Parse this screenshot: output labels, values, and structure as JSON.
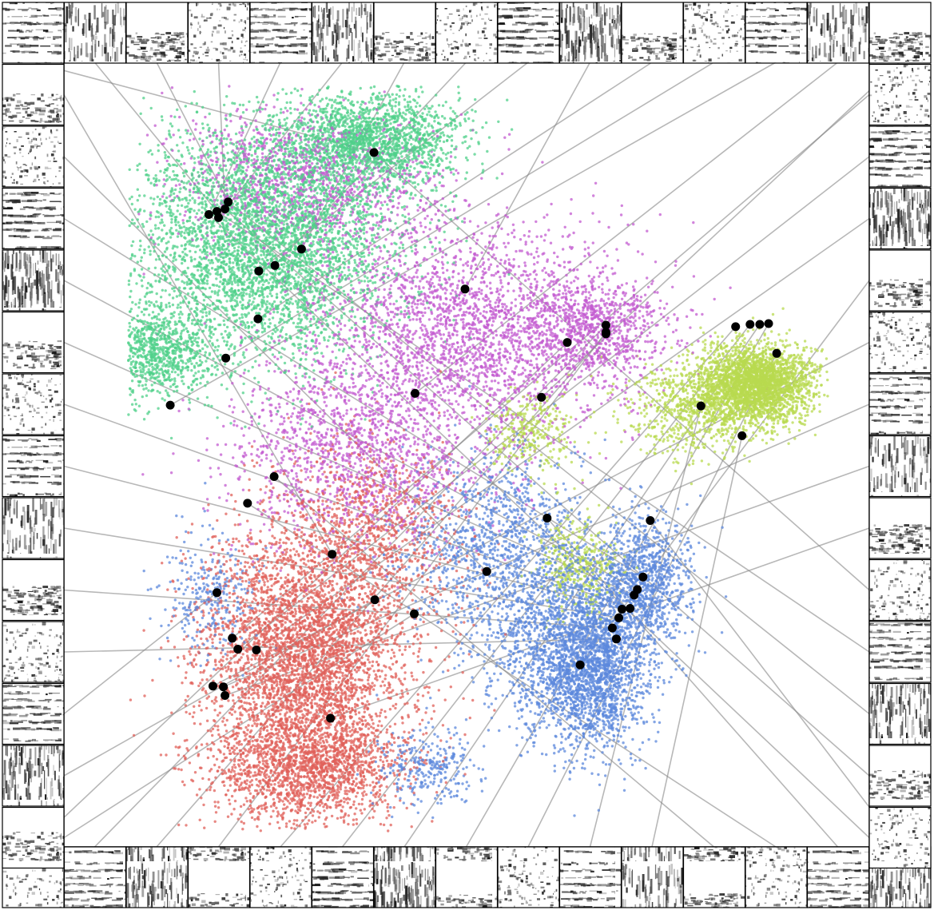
{
  "chart_data": {
    "type": "scatter",
    "title": "",
    "xlabel": "",
    "ylabel": "",
    "axes_visible": false,
    "grid": false,
    "legend": "none",
    "xlim": [
      0,
      100
    ],
    "ylim": [
      0,
      100
    ],
    "background": "#ffffff",
    "thumbnail_style": "grayscale spectrogram insets framing the plot, connected to highlighted points by gray lines",
    "thumbnail_count_per_side": 14,
    "series": [
      {
        "color": "#4fd08a",
        "regions": [
          {
            "cx": 25,
            "cy": 77,
            "rx": 16,
            "ry": 15,
            "n": 4200
          },
          {
            "cx": 38,
            "cy": 90,
            "rx": 11,
            "ry": 6,
            "n": 1800
          },
          {
            "cx": 12,
            "cy": 63,
            "rx": 6,
            "ry": 6,
            "n": 800
          }
        ]
      },
      {
        "color": "#c35bd0",
        "regions": [
          {
            "cx": 30,
            "cy": 85,
            "rx": 16,
            "ry": 9,
            "n": 1200
          },
          {
            "cx": 50,
            "cy": 66,
            "rx": 20,
            "ry": 14,
            "n": 2600
          },
          {
            "cx": 66,
            "cy": 66,
            "rx": 9,
            "ry": 7,
            "n": 800
          },
          {
            "cx": 36,
            "cy": 50,
            "rx": 16,
            "ry": 12,
            "n": 1400
          }
        ]
      },
      {
        "color": "#e0605a",
        "regions": [
          {
            "cx": 30,
            "cy": 24,
            "rx": 13,
            "ry": 16,
            "n": 4000
          },
          {
            "cx": 30,
            "cy": 10,
            "rx": 12,
            "ry": 7,
            "n": 1600
          },
          {
            "cx": 38,
            "cy": 40,
            "rx": 12,
            "ry": 12,
            "n": 1000
          }
        ]
      },
      {
        "color": "#5c88dc",
        "regions": [
          {
            "cx": 63,
            "cy": 25,
            "rx": 10,
            "ry": 11,
            "n": 1800
          },
          {
            "cx": 66,
            "cy": 22,
            "rx": 6,
            "ry": 10,
            "n": 1200
          },
          {
            "cx": 72,
            "cy": 34,
            "rx": 6,
            "ry": 8,
            "n": 1000
          },
          {
            "cx": 54,
            "cy": 38,
            "rx": 12,
            "ry": 12,
            "n": 1200
          },
          {
            "cx": 18,
            "cy": 32,
            "rx": 6,
            "ry": 8,
            "n": 300
          },
          {
            "cx": 45,
            "cy": 10,
            "rx": 6,
            "ry": 5,
            "n": 300
          }
        ]
      },
      {
        "color": "#b8d94f",
        "regions": [
          {
            "cx": 86,
            "cy": 59,
            "rx": 7,
            "ry": 5,
            "n": 2800
          },
          {
            "cx": 78,
            "cy": 56,
            "rx": 8,
            "ry": 6,
            "n": 700
          },
          {
            "cx": 64,
            "cy": 36,
            "rx": 5,
            "ry": 6,
            "n": 350
          },
          {
            "cx": 58,
            "cy": 53,
            "rx": 6,
            "ry": 5,
            "n": 300
          }
        ]
      }
    ],
    "highlighted_points": [
      {
        "x": 38.5,
        "y": 88.5
      },
      {
        "x": 19.0,
        "y": 81.0
      },
      {
        "x": 20.4,
        "y": 82.2
      },
      {
        "x": 20.0,
        "y": 81.3
      },
      {
        "x": 18.0,
        "y": 80.6
      },
      {
        "x": 19.2,
        "y": 80.2
      },
      {
        "x": 29.5,
        "y": 76.2
      },
      {
        "x": 26.2,
        "y": 74.1
      },
      {
        "x": 24.2,
        "y": 73.4
      },
      {
        "x": 49.8,
        "y": 71.1
      },
      {
        "x": 24.1,
        "y": 67.3
      },
      {
        "x": 20.1,
        "y": 62.3
      },
      {
        "x": 13.2,
        "y": 56.3
      },
      {
        "x": 43.6,
        "y": 57.8
      },
      {
        "x": 59.3,
        "y": 57.3
      },
      {
        "x": 62.5,
        "y": 64.3
      },
      {
        "x": 67.3,
        "y": 66.5
      },
      {
        "x": 67.3,
        "y": 65.4
      },
      {
        "x": 67.3,
        "y": 65.6
      },
      {
        "x": 83.4,
        "y": 66.3
      },
      {
        "x": 85.2,
        "y": 66.6
      },
      {
        "x": 86.4,
        "y": 66.6
      },
      {
        "x": 87.5,
        "y": 66.7
      },
      {
        "x": 88.5,
        "y": 62.9
      },
      {
        "x": 79.1,
        "y": 56.2
      },
      {
        "x": 84.2,
        "y": 52.4
      },
      {
        "x": 26.1,
        "y": 47.2
      },
      {
        "x": 22.8,
        "y": 43.8
      },
      {
        "x": 60.0,
        "y": 41.9
      },
      {
        "x": 72.8,
        "y": 41.6
      },
      {
        "x": 33.3,
        "y": 37.3
      },
      {
        "x": 52.5,
        "y": 35.1
      },
      {
        "x": 71.9,
        "y": 34.4
      },
      {
        "x": 71.2,
        "y": 32.8
      },
      {
        "x": 70.8,
        "y": 32.1
      },
      {
        "x": 70.3,
        "y": 30.4
      },
      {
        "x": 69.3,
        "y": 30.3
      },
      {
        "x": 68.9,
        "y": 29.2
      },
      {
        "x": 68.1,
        "y": 27.9
      },
      {
        "x": 68.6,
        "y": 26.5
      },
      {
        "x": 19.0,
        "y": 32.4
      },
      {
        "x": 38.6,
        "y": 31.5
      },
      {
        "x": 43.5,
        "y": 29.7
      },
      {
        "x": 20.9,
        "y": 26.6
      },
      {
        "x": 21.6,
        "y": 25.2
      },
      {
        "x": 23.9,
        "y": 25.1
      },
      {
        "x": 64.1,
        "y": 23.2
      },
      {
        "x": 18.5,
        "y": 20.5
      },
      {
        "x": 19.8,
        "y": 20.4
      },
      {
        "x": 20.0,
        "y": 19.3
      },
      {
        "x": 33.1,
        "y": 16.4
      }
    ]
  }
}
